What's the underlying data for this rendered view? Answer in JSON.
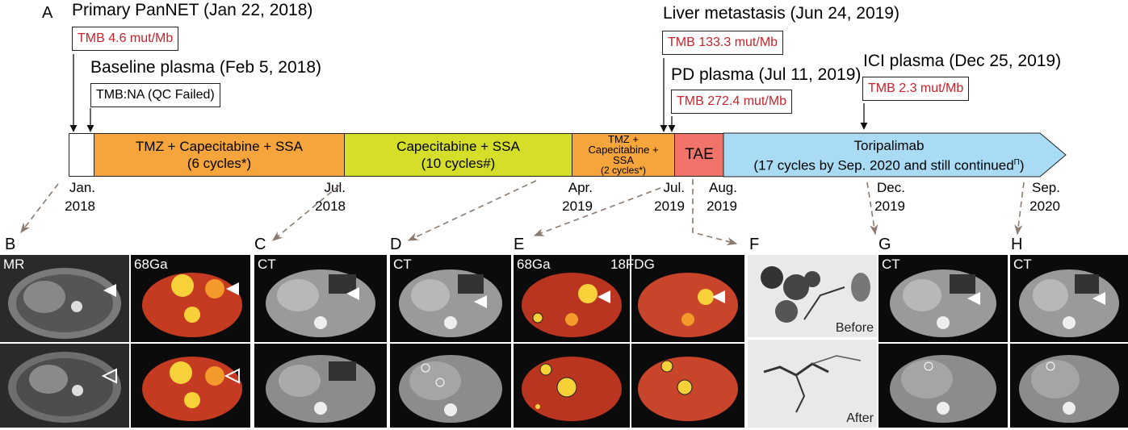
{
  "panels": {
    "a": "A",
    "b": "B",
    "c": "C",
    "d": "D",
    "e": "E",
    "f": "F",
    "g": "G",
    "h": "H"
  },
  "events": {
    "primary": {
      "title": "Primary PanNET (Jan 22, 2018)",
      "tmb": "TMB 4.6 mut/Mb"
    },
    "baseline": {
      "title": "Baseline plasma (Feb 5, 2018)",
      "tmb": "TMB:NA (QC Failed)"
    },
    "liver": {
      "title": "Liver metastasis (Jun 24, 2019)",
      "tmb": "TMB 133.3 mut/Mb"
    },
    "pd": {
      "title": "PD plasma (Jul 11, 2019)",
      "tmb": "TMB 272.4 mut/Mb"
    },
    "ici": {
      "title": "ICI plasma (Dec 25, 2019)",
      "tmb": "TMB 2.3 mut/Mb"
    }
  },
  "timeline": {
    "seg1": {
      "line1": "TMZ + Capecitabine + SSA",
      "line2": "(6 cycles*)",
      "color": "#f5a53b"
    },
    "seg2": {
      "line1": "Capecitabine + SSA",
      "line2": "(10 cycles#)",
      "color": "#d5df2a"
    },
    "seg3": {
      "line1": "TMZ +",
      "line2": "Capecitabine +",
      "line3": "SSA",
      "line4": "(2 cycles*)",
      "color": "#f5a53b"
    },
    "seg4": {
      "label": "TAE",
      "color": "#f0746a"
    },
    "seg5": {
      "line1": "Toripalimab",
      "line2": "(17 cycles by Sep. 2020 and still continued",
      "mark": "Π",
      "line2_end": ")",
      "color": "#a9dcf4"
    }
  },
  "dates": [
    {
      "month": "Jan.",
      "year": "2018"
    },
    {
      "month": "Jul.",
      "year": "2018"
    },
    {
      "month": "Apr.",
      "year": "2019"
    },
    {
      "month": "Jul.",
      "year": "2019"
    },
    {
      "month": "Aug.",
      "year": "2019"
    },
    {
      "month": "Dec.",
      "year": "2019"
    },
    {
      "month": "Sep.",
      "year": "2020"
    }
  ],
  "scan_labels": {
    "mr": "MR",
    "ga_b": "68Ga",
    "ct_c": "CT",
    "ct_d": "CT",
    "ga_e": "68Ga",
    "fdg_e": "18FDG",
    "before": "Before",
    "after": "After",
    "ct_g": "CT",
    "ct_h": "CT"
  },
  "colors": {
    "pet_hot": "#f7d13a",
    "pet_warm": "#d9482b",
    "arrow_dash": "#8a7a70"
  }
}
